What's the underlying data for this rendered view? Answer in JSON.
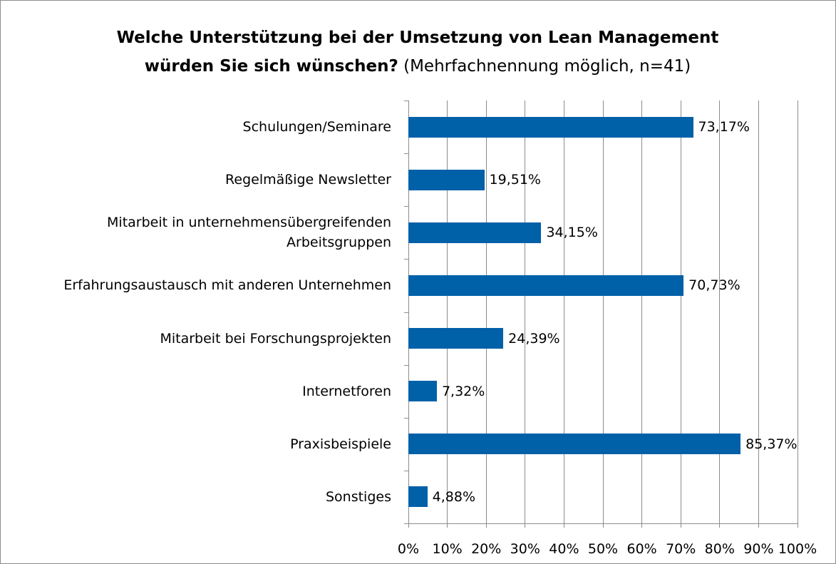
{
  "chart_data": {
    "type": "barh",
    "title": "Welche Unterstützung bei der Umsetzung von Lean Management würden Sie sich wünschen?",
    "subtitle": "(Mehrfachnennung möglich, n=41)",
    "categories": [
      "Schulungen/Seminare",
      "Regelmäßige Newsletter",
      "Mitarbeit in unternehmensübergreifenden Arbeitsgruppen",
      "Erfahrungsaustausch mit anderen Unternehmen",
      "Mitarbeit bei Forschungsprojekten",
      "Internetforen",
      "Praxisbeispiele",
      "Sonstiges"
    ],
    "values": [
      73.17,
      19.51,
      34.15,
      70.73,
      24.39,
      7.32,
      85.37,
      4.88
    ],
    "value_labels": [
      "73,17%",
      "19,51%",
      "34,15%",
      "70,73%",
      "24,39%",
      "7,32%",
      "85,37%",
      "4,88%"
    ],
    "color": "#0060a8",
    "xlim": [
      0,
      100
    ],
    "xticks": [
      {
        "value": 0,
        "label": "0%"
      },
      {
        "value": 10,
        "label": "10%"
      },
      {
        "value": 20,
        "label": "20%"
      },
      {
        "value": 30,
        "label": "30%"
      },
      {
        "value": 40,
        "label": "40%"
      },
      {
        "value": 50,
        "label": "50%"
      },
      {
        "value": 60,
        "label": "60%"
      },
      {
        "value": 70,
        "label": "70%"
      },
      {
        "value": 80,
        "label": "80%"
      },
      {
        "value": 90,
        "label": "90%"
      },
      {
        "value": 100,
        "label": "100%"
      }
    ],
    "grid": true
  }
}
